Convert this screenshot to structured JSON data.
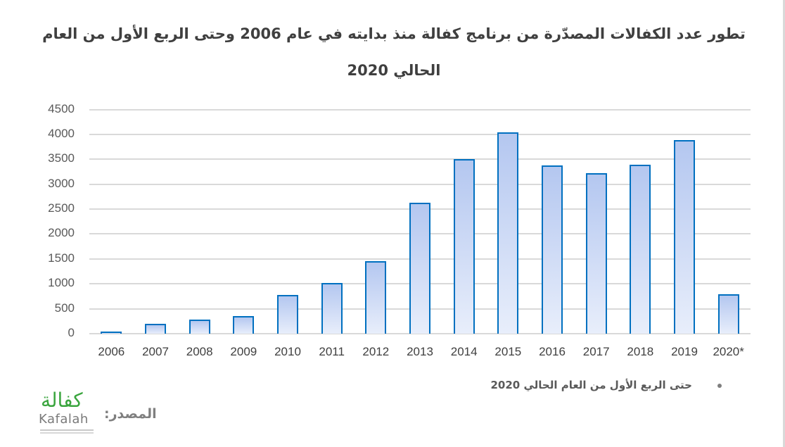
{
  "title": {
    "line1": "تطور عدد الكفالات المصدّرة من برنامج كفالة منذ بدايته في عام 2006 وحتى الربع الأول من العام",
    "line2": "الحالي 2020"
  },
  "footnote": "حتى الربع الأول من العام الحالي 2020",
  "source": {
    "label": "المصدر:",
    "logo_arabic": "كفالة",
    "logo_english": "Kafalah"
  },
  "colors": {
    "bar_border": "#0070c0",
    "bar_fill_top": "#b4c7f0",
    "bar_fill_bottom": "#e8eefb",
    "grid": "#d9d9d9",
    "logo_green": "#3aa53e"
  },
  "chart_data": {
    "type": "bar",
    "title": "تطور عدد الكفالات المصدّرة من برنامج كفالة منذ بدايته في عام 2006 وحتى الربع الأول من العام الحالي 2020",
    "xlabel": "",
    "ylabel": "",
    "categories": [
      "2006",
      "2007",
      "2008",
      "2009",
      "2010",
      "2011",
      "2012",
      "2013",
      "2014",
      "2015",
      "2016",
      "2017",
      "2018",
      "2019",
      "2020*"
    ],
    "values": [
      40,
      195,
      278,
      357,
      781,
      1021,
      1459,
      2631,
      3507,
      4044,
      3380,
      3225,
      3394,
      3884,
      795
    ],
    "ylim": [
      0,
      4500
    ],
    "yticks": [
      0,
      500,
      1000,
      1500,
      2000,
      2500,
      3000,
      3500,
      4000,
      4500
    ],
    "grid": true,
    "legend": null,
    "annotations": [
      "* حتى الربع الأول من العام الحالي 2020"
    ]
  }
}
